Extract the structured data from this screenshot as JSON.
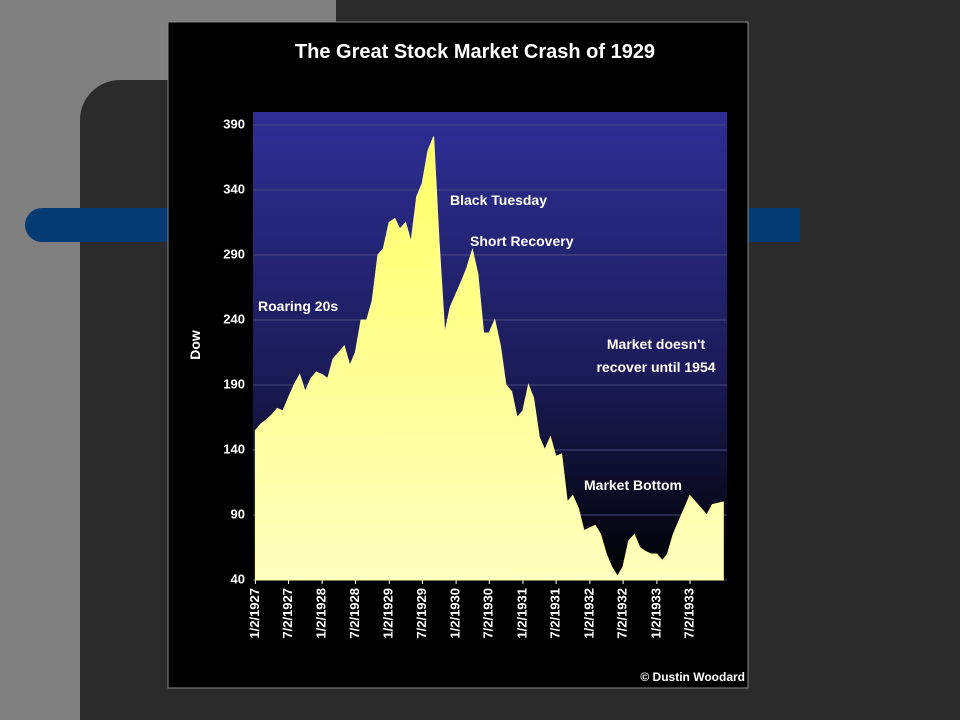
{
  "chart_data": {
    "type": "area",
    "title": "The Great Stock Market Crash of 1929",
    "y_label": "Dow",
    "credit": "© Dustin Woodard",
    "annotations": [
      "Roaring 20s",
      "Black Tuesday",
      "Short Recovery",
      "Market doesn't",
      "recover until 1954",
      "Market Bottom"
    ],
    "color": "#ffff99",
    "x": [
      "1927-01-02",
      "1927-02-01",
      "1927-03-01",
      "1927-04-01",
      "1927-05-01",
      "1927-06-01",
      "1927-07-01",
      "1927-08-01",
      "1927-09-01",
      "1927-10-01",
      "1927-11-01",
      "1927-12-01",
      "1928-01-01",
      "1928-02-01",
      "1928-03-01",
      "1928-04-01",
      "1928-05-01",
      "1928-06-01",
      "1928-07-01",
      "1928-08-01",
      "1928-09-01",
      "1928-10-01",
      "1928-11-01",
      "1928-12-01",
      "1929-01-01",
      "1929-02-01",
      "1929-03-01",
      "1929-04-01",
      "1929-05-01",
      "1929-06-01",
      "1929-07-01",
      "1929-08-01",
      "1929-09-01",
      "1929-10-01",
      "1929-11-01",
      "1929-12-01",
      "1930-01-01",
      "1930-02-01",
      "1930-03-01",
      "1930-04-01",
      "1930-05-01",
      "1930-06-01",
      "1930-07-01",
      "1930-08-01",
      "1930-09-01",
      "1930-10-01",
      "1930-11-01",
      "1930-12-01",
      "1931-01-01",
      "1931-02-01",
      "1931-03-01",
      "1931-04-01",
      "1931-05-01",
      "1931-06-01",
      "1931-07-01",
      "1931-08-01",
      "1931-09-01",
      "1931-10-01",
      "1931-11-01",
      "1931-12-01",
      "1932-01-01",
      "1932-02-01",
      "1932-03-01",
      "1932-04-01",
      "1932-05-01",
      "1932-06-01",
      "1932-07-01",
      "1932-08-01",
      "1932-09-01",
      "1932-10-01",
      "1932-11-01",
      "1932-12-01",
      "1933-01-01",
      "1933-02-01",
      "1933-03-01",
      "1933-04-01",
      "1933-05-01",
      "1933-06-01",
      "1933-07-01",
      "1933-08-01",
      "1933-09-01",
      "1933-10-01",
      "1933-11-01",
      "1933-12-31"
    ],
    "values": [
      155,
      160,
      163,
      167,
      172,
      170,
      180,
      190,
      198,
      185,
      195,
      200,
      198,
      195,
      210,
      215,
      220,
      205,
      215,
      240,
      240,
      255,
      290,
      295,
      315,
      318,
      310,
      315,
      300,
      335,
      345,
      370,
      381,
      300,
      230,
      250,
      260,
      270,
      280,
      294,
      275,
      230,
      230,
      240,
      220,
      190,
      185,
      165,
      170,
      190,
      180,
      150,
      140,
      150,
      135,
      137,
      100,
      105,
      95,
      78,
      80,
      82,
      75,
      60,
      50,
      43,
      50,
      70,
      75,
      65,
      62,
      60,
      60,
      55,
      60,
      75,
      85,
      95,
      105,
      100,
      95,
      90,
      98,
      100
    ],
    "xlim": [
      "1926-12-20",
      "1934-01-20"
    ],
    "ylim": [
      40,
      400
    ],
    "yticks": [
      40,
      90,
      140,
      190,
      240,
      290,
      340,
      390
    ],
    "xticks": [
      {
        "value": "1927-01-02",
        "label": "1/2/1927"
      },
      {
        "value": "1927-07-02",
        "label": "7/2/1927"
      },
      {
        "value": "1928-01-02",
        "label": "1/2/1928"
      },
      {
        "value": "1928-07-02",
        "label": "7/2/1928"
      },
      {
        "value": "1929-01-02",
        "label": "1/2/1929"
      },
      {
        "value": "1929-07-02",
        "label": "7/2/1929"
      },
      {
        "value": "1930-01-02",
        "label": "1/2/1930"
      },
      {
        "value": "1930-07-02",
        "label": "7/2/1930"
      },
      {
        "value": "1931-01-02",
        "label": "1/2/1931"
      },
      {
        "value": "1931-07-02",
        "label": "7/2/1931"
      },
      {
        "value": "1932-01-02",
        "label": "1/2/1932"
      },
      {
        "value": "1932-07-02",
        "label": "7/2/1932"
      },
      {
        "value": "1933-01-02",
        "label": "1/2/1933"
      },
      {
        "value": "1933-07-02",
        "label": "7/2/1933"
      }
    ],
    "grid": true
  }
}
